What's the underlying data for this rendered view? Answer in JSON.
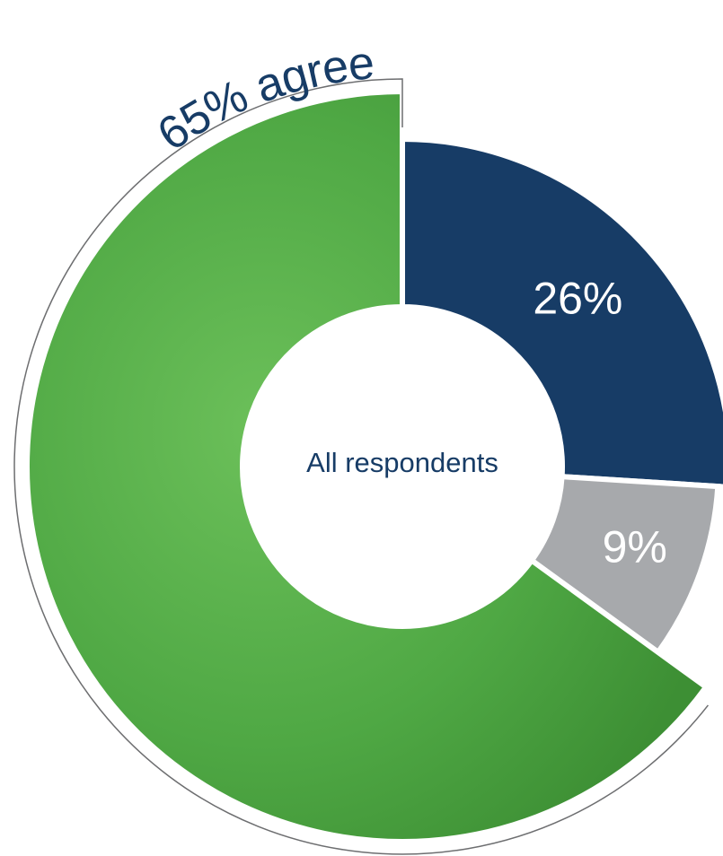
{
  "chart_data": {
    "type": "pie",
    "center_label": "All respondents",
    "values": [
      26,
      9,
      65
    ],
    "value_labels": [
      "26%",
      "9%",
      "65% agree"
    ],
    "colors": [
      "#173c66",
      "#a7a9ac",
      "#4fa844"
    ]
  }
}
